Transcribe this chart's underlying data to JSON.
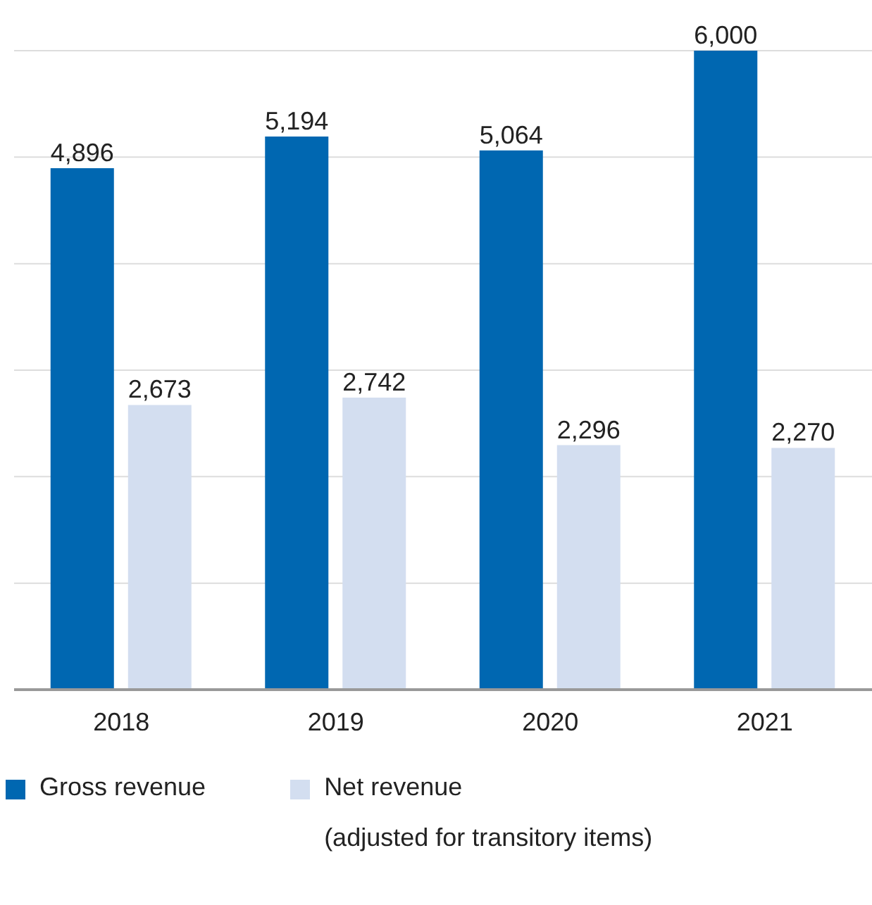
{
  "chart_data": {
    "type": "bar",
    "categories": [
      "2018",
      "2019",
      "2020",
      "2021"
    ],
    "series": [
      {
        "name": "Gross revenue",
        "color": "#0067b1",
        "values": [
          4896,
          5194,
          5064,
          6000
        ],
        "value_labels": [
          "4,896",
          "5,194",
          "5,064",
          "6,000"
        ]
      },
      {
        "name": "Net revenue\n(adjusted for transitory items)",
        "color": "#d3def0",
        "values": [
          2673,
          2742,
          2296,
          2270
        ],
        "value_labels": [
          "2,673",
          "2,742",
          "2,296",
          "2,270"
        ]
      }
    ],
    "tick_labels": "x",
    "grid": "y",
    "legend": "bottom"
  }
}
